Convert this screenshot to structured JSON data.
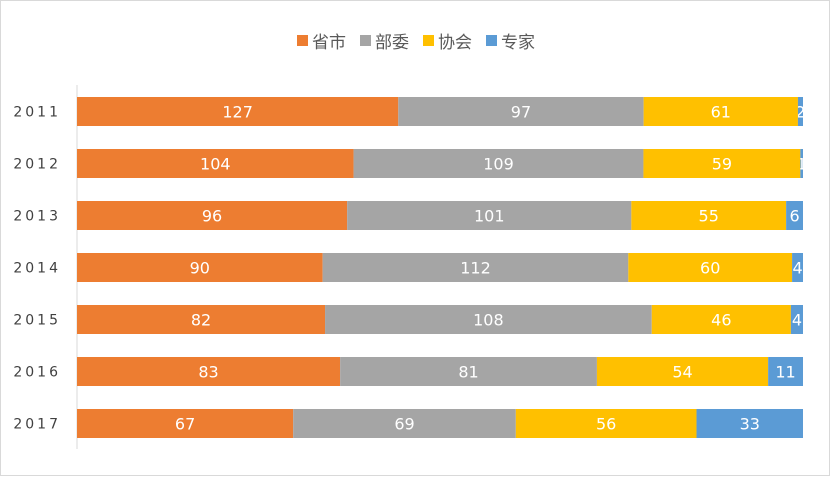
{
  "chart_data": {
    "type": "bar",
    "orientation": "horizontal",
    "stacked": "percent",
    "categories": [
      "2011",
      "2012",
      "2013",
      "2014",
      "2015",
      "2016",
      "2017"
    ],
    "series": [
      {
        "name": "省市",
        "color": "#ED7D31",
        "values": [
          127,
          104,
          96,
          90,
          82,
          83,
          67
        ]
      },
      {
        "name": "部委",
        "color": "#A5A5A5",
        "values": [
          97,
          109,
          101,
          112,
          108,
          81,
          69
        ]
      },
      {
        "name": "协会",
        "color": "#FFC000",
        "values": [
          61,
          59,
          55,
          60,
          46,
          54,
          56
        ]
      },
      {
        "name": "专家",
        "color": "#5B9BD5",
        "values": [
          2,
          1,
          6,
          4,
          4,
          11,
          33
        ]
      }
    ],
    "legend": "top-center",
    "grid": false
  }
}
